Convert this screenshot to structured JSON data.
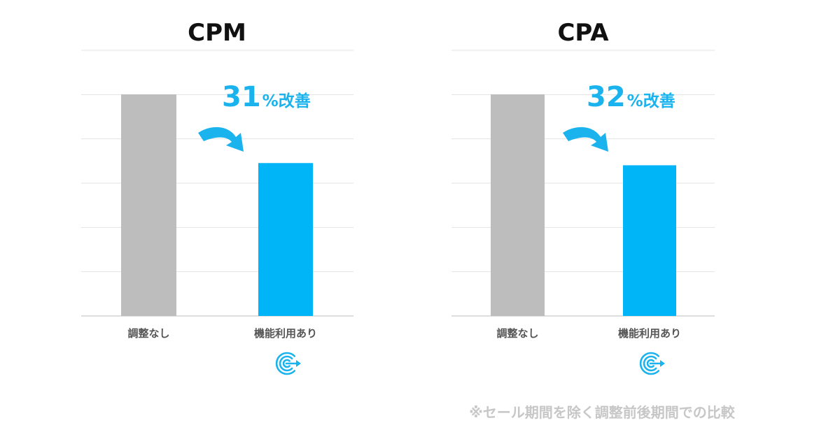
{
  "colors": {
    "baseline_bar": "#bdbdbd",
    "feature_bar": "#00b4f8",
    "accent": "#1ab3ee",
    "grid": "#e3e3e3",
    "axis": "#d4d4d4"
  },
  "icons": [
    "arrow-icon",
    "logo-icon"
  ],
  "chart_data": [
    {
      "type": "bar",
      "title": "CPM",
      "categories": [
        "調整なし",
        "機能利用あり"
      ],
      "values": [
        100,
        69
      ],
      "ylim": [
        0,
        100
      ],
      "grid": true,
      "annotation": {
        "number": "31",
        "suffix": "%改善"
      }
    },
    {
      "type": "bar",
      "title": "CPA",
      "categories": [
        "調整なし",
        "機能利用あり"
      ],
      "values": [
        100,
        68
      ],
      "ylim": [
        0,
        100
      ],
      "grid": true,
      "annotation": {
        "number": "32",
        "suffix": "%改善"
      }
    }
  ],
  "footnote": "※セール期間を除く調整前後期間での比較"
}
